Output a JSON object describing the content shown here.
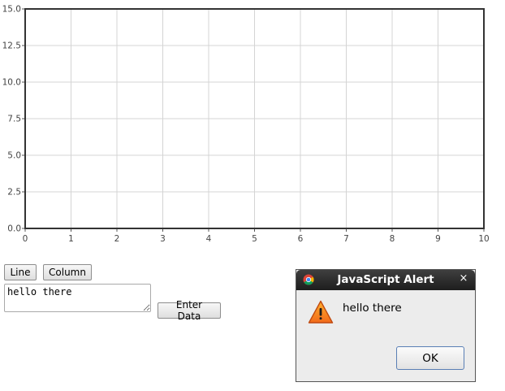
{
  "chart_data": {
    "type": "line",
    "xlim": [
      0,
      10
    ],
    "ylim": [
      0,
      15
    ],
    "x_ticks": [
      "0",
      "1",
      "2",
      "3",
      "4",
      "5",
      "6",
      "7",
      "8",
      "9",
      "10"
    ],
    "y_ticks": [
      "0.0",
      "2.5",
      "5.0",
      "7.5",
      "10.0",
      "12.5",
      "15.0"
    ],
    "grid": true,
    "series": []
  },
  "controls": {
    "line_button": "Line",
    "column_button": "Column",
    "data_input_value": "hello there",
    "enter_data_button": "Enter Data"
  },
  "alert": {
    "title": "JavaScript Alert",
    "close_glyph": "×",
    "message": "hello there",
    "ok_button": "OK"
  }
}
